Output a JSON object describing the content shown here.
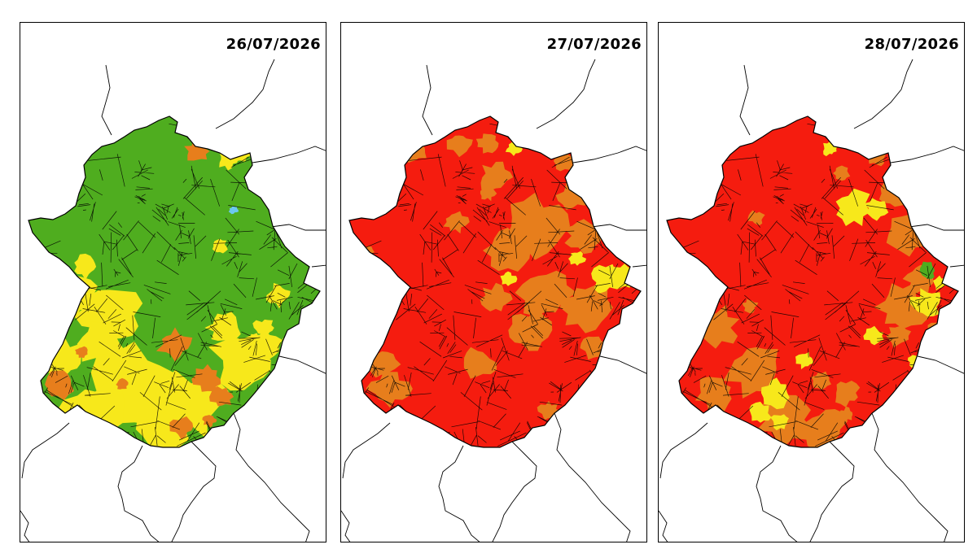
{
  "colors": {
    "green": "#4fad1f",
    "yellow": "#f7e81b",
    "orange": "#e77e1c",
    "red": "#f51c0f",
    "water": "#6cc8f0",
    "border": "#000000",
    "background": "#ffffff"
  },
  "maps": [
    {
      "date": "26/07/2026",
      "base_color": "green",
      "dominant_levels": [
        "green",
        "yellow",
        "orange"
      ]
    },
    {
      "date": "27/07/2026",
      "base_color": "red",
      "dominant_levels": [
        "red",
        "orange",
        "yellow"
      ]
    },
    {
      "date": "28/07/2026",
      "base_color": "red",
      "dominant_levels": [
        "red",
        "orange",
        "yellow",
        "green"
      ]
    }
  ]
}
